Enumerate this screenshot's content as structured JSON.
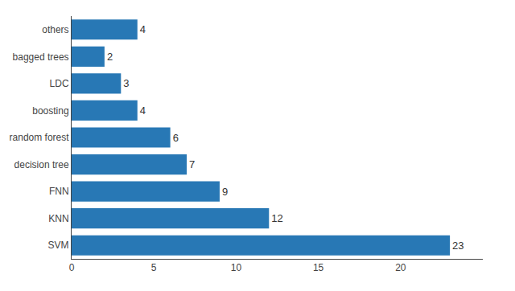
{
  "chart_data": {
    "type": "bar",
    "orientation": "horizontal",
    "categories": [
      "SVM",
      "KNN",
      "FNN",
      "decision tree",
      "random forest",
      "boosting",
      "LDC",
      "bagged trees",
      "others"
    ],
    "values": [
      23,
      12,
      9,
      7,
      6,
      4,
      3,
      2,
      4
    ],
    "color": "#2878b5",
    "xlim": [
      0,
      25
    ],
    "xticks": [
      0,
      5,
      10,
      15,
      20
    ],
    "grid": false,
    "data_labels": true
  }
}
